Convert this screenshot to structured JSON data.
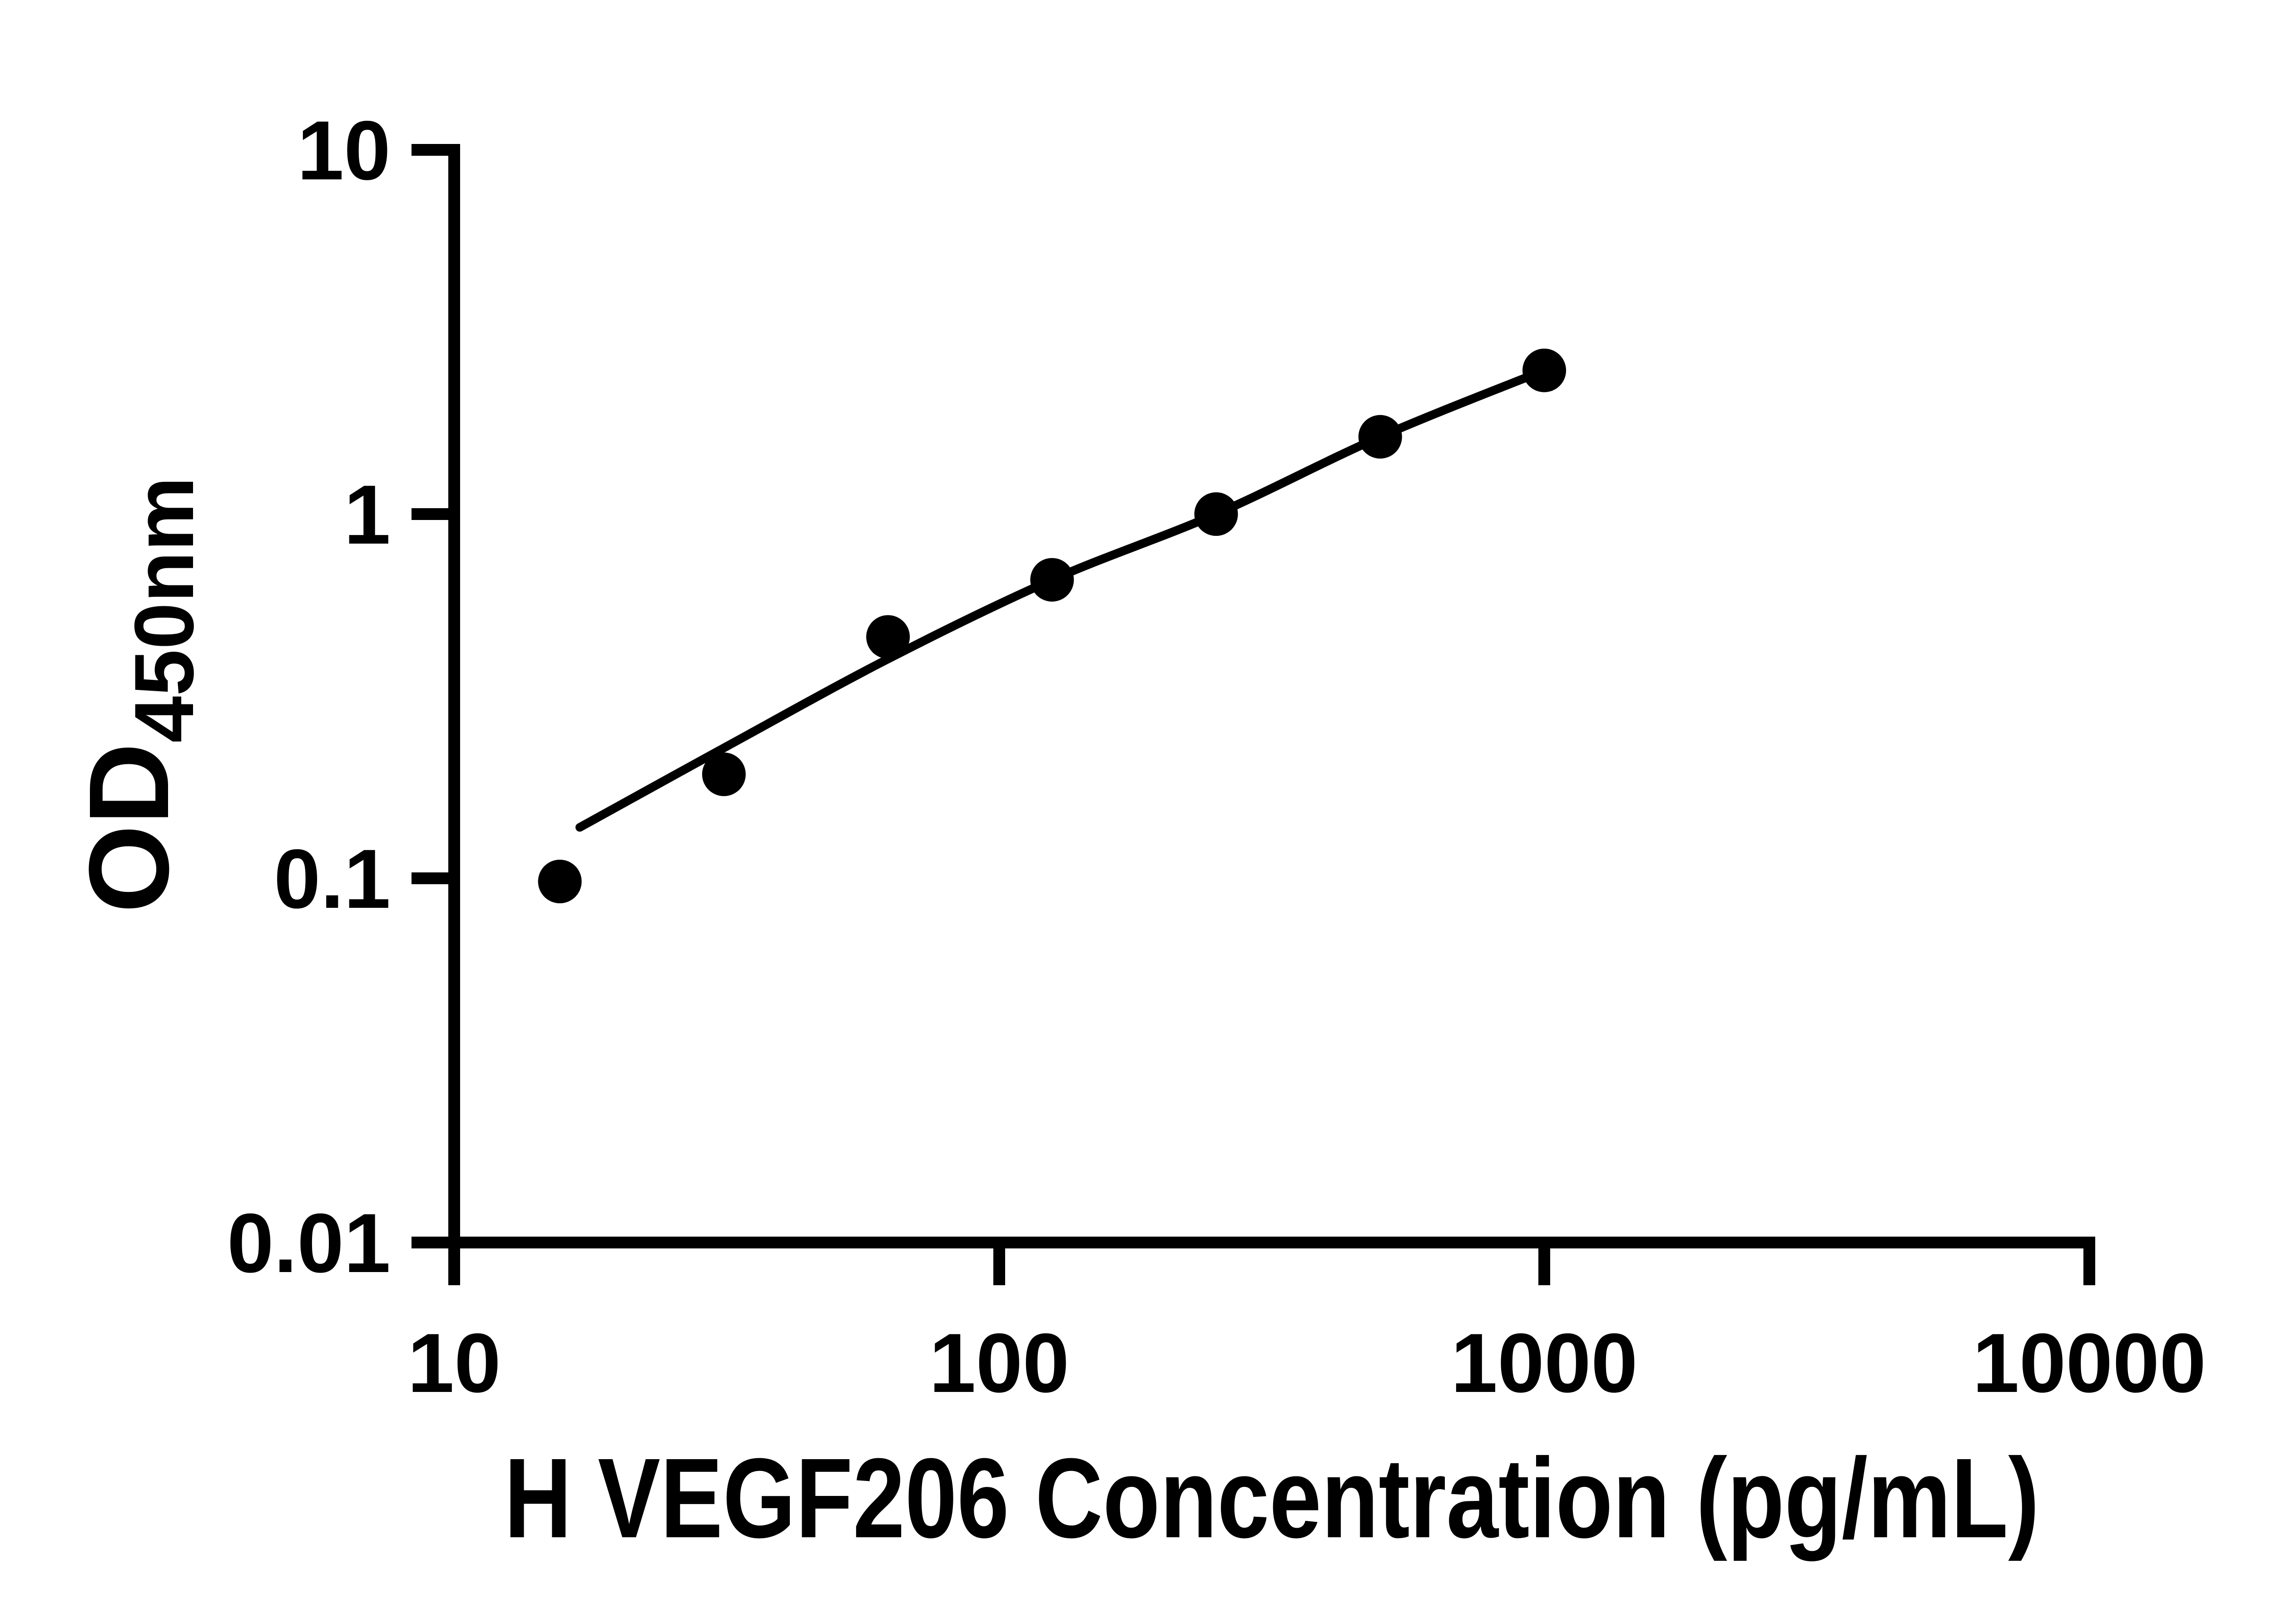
{
  "figure": {
    "background_color": "#ffffff",
    "ink_color": "#000000",
    "description": "ELISA standard curve, log-log scatter plot with fitted line"
  },
  "chart_data": {
    "type": "scatter",
    "title": "",
    "xlabel": "H VEGF206 Concentration (pg/mL)",
    "ylabel": "OD450nm",
    "ylabel_main": "OD",
    "ylabel_sub": "450nm",
    "x_scale": "log10",
    "y_scale": "log10",
    "xlim": [
      10,
      10000
    ],
    "ylim": [
      0.01,
      10
    ],
    "grid": false,
    "legend": false,
    "x_ticks": [
      {
        "value": 10,
        "label": "10"
      },
      {
        "value": 100,
        "label": "100"
      },
      {
        "value": 1000,
        "label": "1000"
      },
      {
        "value": 10000,
        "label": "10000"
      }
    ],
    "y_ticks": [
      {
        "value": 10,
        "label": "10"
      },
      {
        "value": 1,
        "label": "1"
      },
      {
        "value": 0.1,
        "label": "0.1"
      },
      {
        "value": 0.01,
        "label": "0.01"
      }
    ],
    "series": [
      {
        "name": "standard-points",
        "type": "scatter",
        "marker": "filled-circle",
        "color": "#000000",
        "points": [
          {
            "x": 15.625,
            "y": 0.098
          },
          {
            "x": 31.25,
            "y": 0.193
          },
          {
            "x": 62.5,
            "y": 0.46
          },
          {
            "x": 125,
            "y": 0.66
          },
          {
            "x": 250,
            "y": 1.0
          },
          {
            "x": 500,
            "y": 1.63
          },
          {
            "x": 1000,
            "y": 2.48
          }
        ]
      },
      {
        "name": "fit-line",
        "type": "line",
        "color": "#000000",
        "points": [
          {
            "x": 17,
            "y": 0.138
          },
          {
            "x": 31.25,
            "y": 0.228
          },
          {
            "x": 62.5,
            "y": 0.4
          },
          {
            "x": 125,
            "y": 0.66
          },
          {
            "x": 250,
            "y": 1.0
          },
          {
            "x": 500,
            "y": 1.63
          },
          {
            "x": 1000,
            "y": 2.48
          }
        ]
      }
    ]
  }
}
